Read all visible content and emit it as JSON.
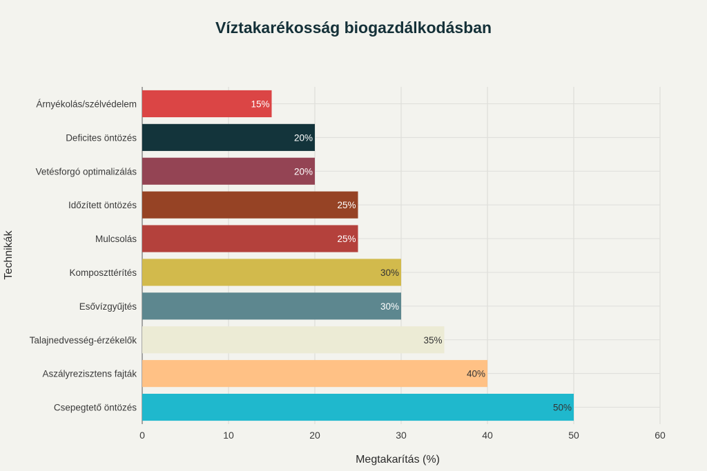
{
  "chart_data": {
    "type": "bar",
    "orientation": "horizontal",
    "title": "Víztakarékosság biogazdálkodásban",
    "xlabel": "Megtakarítás (%)",
    "ylabel": "Technikák",
    "xlim": [
      0,
      60
    ],
    "xticks": [
      "0",
      "10",
      "20",
      "30",
      "40",
      "50",
      "60"
    ],
    "grid": true,
    "legend": "none",
    "categories": [
      "Árnyékolás/szélvédelem",
      "Deficites öntözés",
      "Vetésforgó optimalizálás",
      "Időzített öntözés",
      "Mulcsolás",
      "Komposzttérítés",
      "Esővízgyűjtés",
      "Talajnedvesség-érzékelők",
      "Aszályrezisztens fajták",
      "Csepegtető öntözés"
    ],
    "values": [
      15,
      20,
      20,
      25,
      25,
      30,
      30,
      35,
      40,
      50
    ],
    "data_labels": [
      "15%",
      "20%",
      "20%",
      "25%",
      "25%",
      "30%",
      "30%",
      "35%",
      "40%",
      "50%"
    ],
    "colors": [
      "#db4545",
      "#13343b",
      "#944454",
      "#964325",
      "#b4413c",
      "#d2ba4c",
      "#5d878f",
      "#ecebd5",
      "#ffc185",
      "#1fb8cd"
    ],
    "label_colors": [
      "#ffffff",
      "#ffffff",
      "#ffffff",
      "#ffffff",
      "#ffffff",
      "#333333",
      "#ffffff",
      "#333333",
      "#333333",
      "#333333"
    ]
  }
}
